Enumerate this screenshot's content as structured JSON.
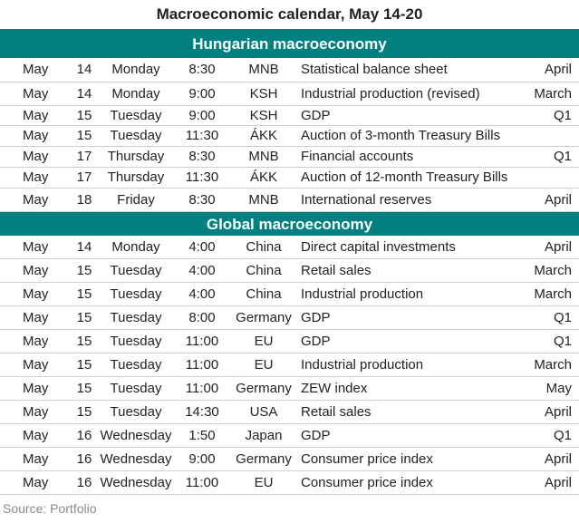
{
  "title": "Macroeconomic calendar, May 14-20",
  "sections": [
    {
      "heading": "Hungarian macroeconomy",
      "rows": [
        {
          "month": "May",
          "day": "14",
          "weekday": "Monday",
          "time": "8:30",
          "source": "MNB",
          "indicator": "Statistical balance sheet",
          "period": "April"
        },
        {
          "month": "May",
          "day": "14",
          "weekday": "Monday",
          "time": "9:00",
          "source": "KSH",
          "indicator": "Industrial production (revised)",
          "period": "March"
        },
        {
          "month": "May",
          "day": "15",
          "weekday": "Tuesday",
          "time": "9:00",
          "source": "KSH",
          "indicator": "GDP",
          "period": "Q1"
        },
        {
          "month": "May",
          "day": "15",
          "weekday": "Tuesday",
          "time": "11:30",
          "source": "ÁKK",
          "indicator": "Auction of 3-month Treasury Bills",
          "period": ""
        },
        {
          "month": "May",
          "day": "17",
          "weekday": "Thursday",
          "time": "8:30",
          "source": "MNB",
          "indicator": "Financial accounts",
          "period": "Q1"
        },
        {
          "month": "May",
          "day": "17",
          "weekday": "Thursday",
          "time": "11:30",
          "source": "ÁKK",
          "indicator": "Auction of 12-month Treasury Bills",
          "period": ""
        },
        {
          "month": "May",
          "day": "18",
          "weekday": "Friday",
          "time": "8:30",
          "source": "MNB",
          "indicator": "International reserves",
          "period": "April"
        }
      ]
    },
    {
      "heading": "Global macroeconomy",
      "rows": [
        {
          "month": "May",
          "day": "14",
          "weekday": "Monday",
          "time": "4:00",
          "source": "China",
          "indicator": "Direct capital investments",
          "period": "April"
        },
        {
          "month": "May",
          "day": "15",
          "weekday": "Tuesday",
          "time": "4:00",
          "source": "China",
          "indicator": "Retail sales",
          "period": "March"
        },
        {
          "month": "May",
          "day": "15",
          "weekday": "Tuesday",
          "time": "4:00",
          "source": "China",
          "indicator": "Industrial production",
          "period": "March"
        },
        {
          "month": "May",
          "day": "15",
          "weekday": "Tuesday",
          "time": "8:00",
          "source": "Germany",
          "indicator": "GDP",
          "period": "Q1"
        },
        {
          "month": "May",
          "day": "15",
          "weekday": "Tuesday",
          "time": "11:00",
          "source": "EU",
          "indicator": "GDP",
          "period": "Q1"
        },
        {
          "month": "May",
          "day": "15",
          "weekday": "Tuesday",
          "time": "11:00",
          "source": "EU",
          "indicator": "Industrial production",
          "period": "March"
        },
        {
          "month": "May",
          "day": "15",
          "weekday": "Tuesday",
          "time": "11:00",
          "source": "Germany",
          "indicator": "ZEW index",
          "period": "May"
        },
        {
          "month": "May",
          "day": "15",
          "weekday": "Tuesday",
          "time": "14:30",
          "source": "USA",
          "indicator": "Retail sales",
          "period": "April"
        },
        {
          "month": "May",
          "day": "16",
          "weekday": "Wednesday",
          "time": "1:50",
          "source": "Japan",
          "indicator": "GDP",
          "period": "Q1"
        },
        {
          "month": "May",
          "day": "16",
          "weekday": "Wednesday",
          "time": "9:00",
          "source": "Germany",
          "indicator": "Consumer price index",
          "period": "April"
        },
        {
          "month": "May",
          "day": "16",
          "weekday": "Wednesday",
          "time": "11:00",
          "source": "EU",
          "indicator": "Consumer price index",
          "period": "April"
        }
      ]
    }
  ],
  "footer": "Source: Portfolio",
  "colors": {
    "section_bg": "#008080",
    "row_border": "#cfcfcf",
    "source_text": "#8a8a8a"
  }
}
